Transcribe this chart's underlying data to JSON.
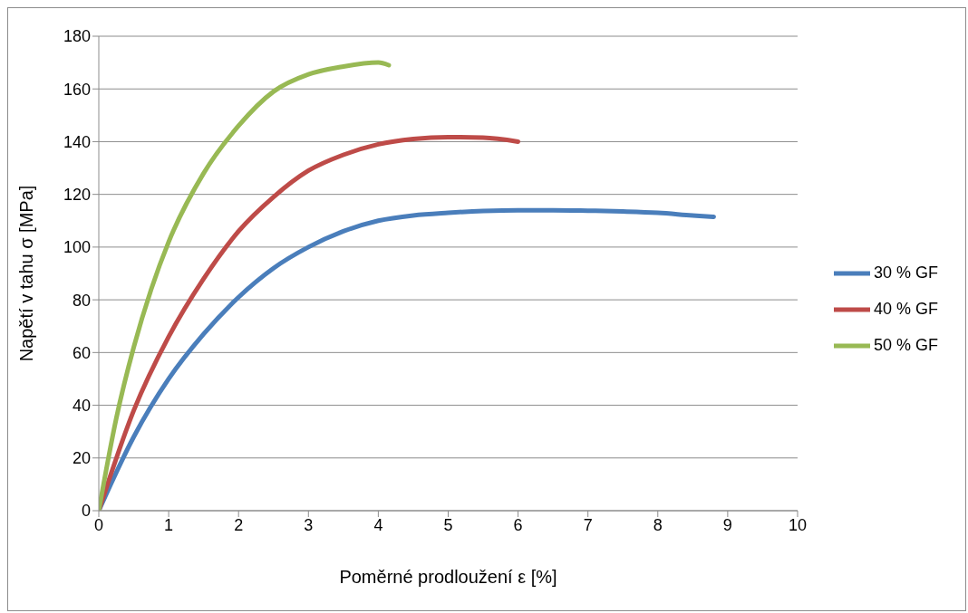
{
  "chart_data": {
    "type": "line",
    "xlabel": "Poměrné prodloužení ε [%]",
    "ylabel": "Napětí v tahu σ [MPa]",
    "xlim": [
      0,
      10
    ],
    "xticks": [
      0,
      1,
      2,
      3,
      4,
      5,
      6,
      7,
      8,
      9,
      10
    ],
    "ylim": [
      0,
      180
    ],
    "yticks": [
      0,
      20,
      40,
      60,
      80,
      100,
      120,
      140,
      160,
      180
    ],
    "grid": "y",
    "legend": "right",
    "marker": "none",
    "line_style": "solid",
    "series": [
      {
        "name": "30 % GF",
        "color": "#4a7ebb",
        "x": [
          0,
          0.5,
          1,
          1.5,
          2,
          2.5,
          3,
          3.5,
          4,
          4.5,
          5,
          5.5,
          6,
          6.5,
          7,
          7.5,
          8,
          8.5,
          8.8
        ],
        "values": [
          0,
          28,
          50,
          67,
          81,
          92,
          100,
          106,
          110,
          112,
          113,
          113.7,
          114,
          114,
          113.8,
          113.5,
          113,
          112,
          111.5
        ]
      },
      {
        "name": "40 % GF",
        "color": "#be4b48",
        "x": [
          0,
          0.5,
          1,
          1.5,
          2,
          2.5,
          3,
          3.5,
          4,
          4.5,
          5,
          5.5,
          6
        ],
        "values": [
          0,
          38,
          66,
          88,
          106,
          119,
          129,
          135,
          139,
          141,
          141.7,
          141.5,
          140
        ]
      },
      {
        "name": "50 % GF",
        "color": "#98b954",
        "x": [
          0,
          0.25,
          0.5,
          0.75,
          1,
          1.5,
          2,
          2.5,
          3,
          3.5,
          4,
          4.15
        ],
        "values": [
          0,
          35,
          62,
          84,
          102,
          128,
          146,
          159,
          165.5,
          168.5,
          170,
          169
        ]
      }
    ]
  }
}
